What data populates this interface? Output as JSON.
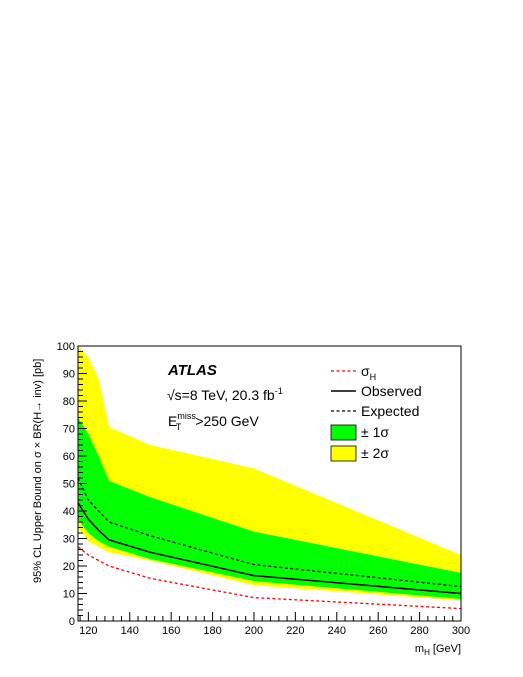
{
  "chart_data": {
    "type": "line",
    "title": "",
    "xlabel": "m",
    "xlabel_sub": "H",
    "xlabel_unit": "[GeV]",
    "ylabel": "95% CL Upper Bound on  σ × BR(H→ inv) [pb]",
    "xlim": [
      115,
      300
    ],
    "ylim": [
      0,
      100
    ],
    "x_ticks": [
      120,
      140,
      160,
      180,
      200,
      220,
      240,
      260,
      280,
      300
    ],
    "y_ticks": [
      0,
      10,
      20,
      30,
      40,
      50,
      60,
      70,
      80,
      90,
      100
    ],
    "grid": false,
    "legend_position": "top-right",
    "annotations": {
      "experiment": "ATLAS",
      "energy_prefix": "√s=8 TeV, 20.3 fb",
      "energy_sup": "-1",
      "met_main": "E",
      "met_sub": "T",
      "met_sup": "miss",
      "met_cut": ">250 GeV"
    },
    "x": [
      115,
      120,
      125,
      130,
      150,
      200,
      300
    ],
    "series": [
      {
        "name": "σ",
        "name_sub": "H",
        "style": "dashed",
        "color": "#ff0000",
        "values": [
          27,
          24,
          22,
          20,
          15.5,
          8.5,
          4.5
        ]
      },
      {
        "name": "Observed",
        "style": "solid",
        "color": "#000000",
        "values": [
          43,
          37,
          33,
          29.5,
          25,
          16.5,
          10
        ]
      },
      {
        "name": "Expected",
        "style": "dashed",
        "color": "#000000",
        "values": [
          52,
          44,
          40,
          36,
          31,
          20.5,
          12.5
        ]
      }
    ],
    "bands": [
      {
        "name": "± 2σ",
        "color": "#ffff00",
        "upper": [
          100,
          96,
          88,
          70.5,
          64,
          55.5,
          24
        ],
        "lower": [
          34,
          29,
          27,
          25,
          22,
          13,
          7.5
        ]
      },
      {
        "name": "± 1σ",
        "color": "#00ff00",
        "upper": [
          74,
          68,
          60,
          51,
          45,
          32.5,
          17.5
        ],
        "lower": [
          37,
          32,
          29,
          27,
          22.5,
          14.5,
          8
        ]
      }
    ]
  }
}
